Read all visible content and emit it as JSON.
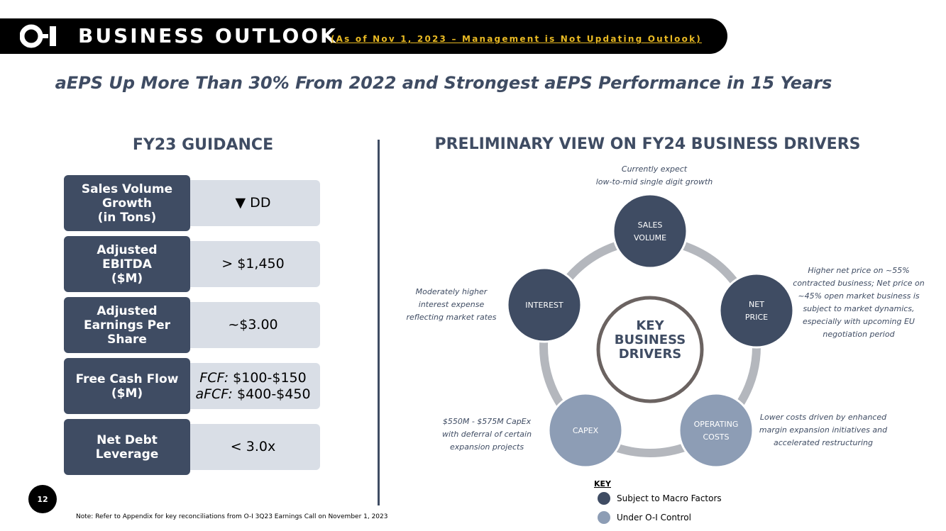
{
  "header": {
    "title": "BUSINESS OUTLOOK",
    "subtitle": "(As of Nov 1, 2023 – Management is Not Updating Outlook)"
  },
  "headline": "aEPS Up More Than 30% From 2022 and Strongest aEPS Performance in 15 Years",
  "guidance": {
    "title": "FY23 GUIDANCE",
    "rows": [
      {
        "label": [
          "Sales Volume",
          "Growth",
          "(in Tons)"
        ],
        "value": [
          {
            "text": "▼ DD"
          }
        ]
      },
      {
        "label": [
          "Adjusted",
          "EBITDA",
          "($M)"
        ],
        "value": [
          {
            "text": "> $1,450"
          }
        ]
      },
      {
        "label": [
          "Adjusted",
          "Earnings Per",
          "Share"
        ],
        "value": [
          {
            "text": "~$3.00"
          }
        ]
      },
      {
        "label": [
          "Free Cash Flow",
          "($M)"
        ],
        "value": [
          {
            "prefix": "FCF:",
            "text": " $100-$150"
          },
          {
            "prefix": "aFCF:",
            "text": " $400-$450"
          }
        ]
      },
      {
        "label": [
          "Net Debt",
          "Leverage"
        ],
        "value": [
          {
            "text": "< 3.0x"
          }
        ]
      }
    ]
  },
  "drivers": {
    "title": "PRELIMINARY VIEW ON FY24 BUSINESS DRIVERS",
    "center": [
      "KEY",
      "BUSINESS",
      "DRIVERS"
    ],
    "nodes": [
      {
        "label": [
          "SALES",
          "VOLUME"
        ],
        "note": [
          "Currently expect",
          "low-to-mid single digit growth"
        ]
      },
      {
        "label": [
          "NET",
          "PRICE"
        ],
        "note": [
          "Higher net price on ~55%",
          "contracted business; Net price on",
          "~45% open market business is",
          "subject to market dynamics,",
          "especially with upcoming EU",
          "negotiation period"
        ]
      },
      {
        "label": [
          "OPERATING",
          "COSTS"
        ],
        "note": [
          "Lower costs driven by enhanced",
          "margin expansion initiatives and",
          "accelerated restructuring"
        ]
      },
      {
        "label": [
          "CAPEX"
        ],
        "note": [
          "$550M - $575M CapEx",
          "with deferral of certain",
          "expansion projects"
        ]
      },
      {
        "label": [
          "INTEREST"
        ],
        "note": [
          "Moderately higher",
          "interest expense",
          "reflecting market rates"
        ]
      }
    ],
    "key": {
      "title": "KEY",
      "items": [
        "Subject to Macro Factors",
        "Under O-I Control"
      ]
    }
  },
  "page_number": "12",
  "footnote": "Note: Refer to Appendix for key reconciliations from O-I 3Q23 Earnings Call on November 1, 2023"
}
